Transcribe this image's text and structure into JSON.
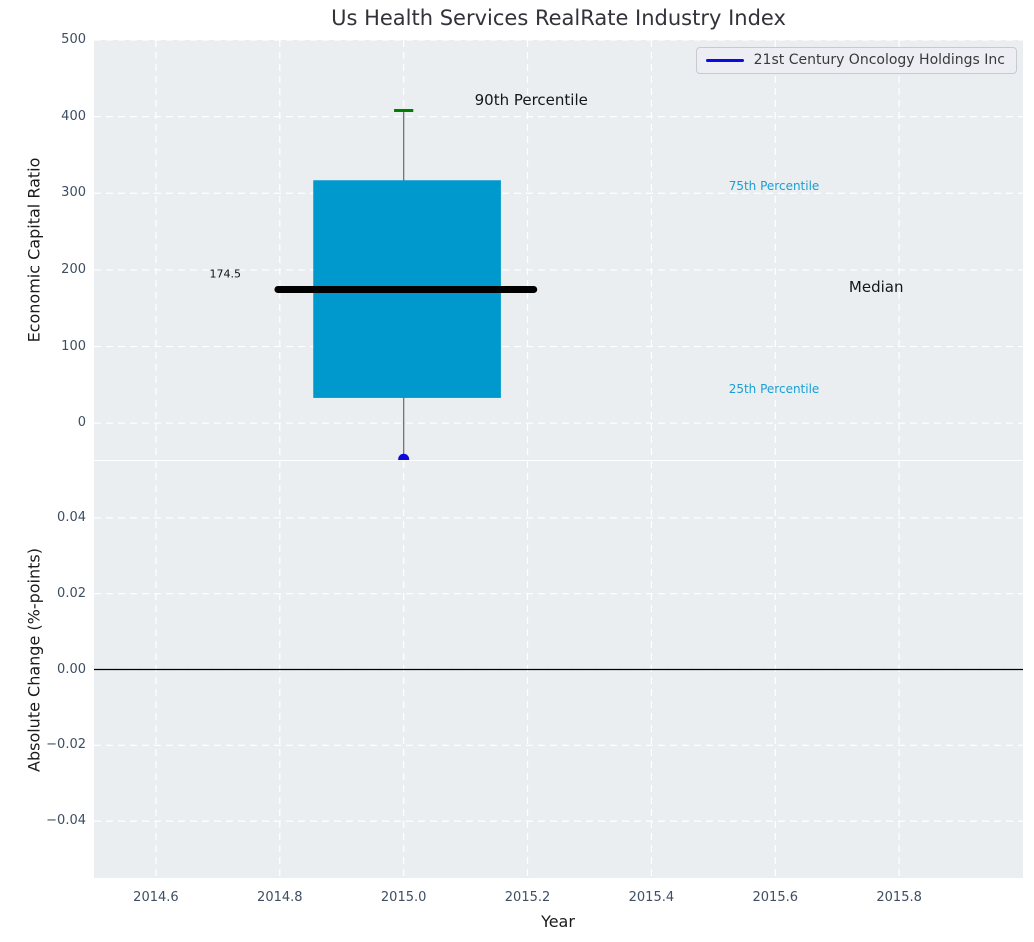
{
  "title": "Us Health Services RealRate Industry Index",
  "chart_data": [
    {
      "type": "boxplot",
      "title": "Us Health Services RealRate Industry Index",
      "ylabel": "Economic Capital Ratio",
      "xlim": [
        2014.5,
        2016.0
      ],
      "ylim": [
        -48,
        500
      ],
      "xticks": [
        2014.6,
        2014.8,
        2015.0,
        2015.2,
        2015.4,
        2015.6,
        2015.8
      ],
      "xtick_labels": [],
      "yticks": [
        500,
        400,
        300,
        200,
        100,
        0
      ],
      "ytick_labels": [
        "500",
        "400",
        "300",
        "200",
        "100",
        "0"
      ],
      "grid": "white-dashed",
      "legend": {
        "position": "upper-right",
        "label": "21st Century Oncology Holdings Inc",
        "line_color": "#0b0bdf"
      },
      "box": {
        "x_center": 2015.0,
        "box_left": 2014.854,
        "box_right": 2015.157,
        "median_left": 2014.797,
        "median_right": 2015.21,
        "q1": 33,
        "median": 174.5,
        "q3": 317,
        "whisker_top": 408,
        "company_point": -47,
        "cap_halfwidth": 0.0155
      },
      "style": {
        "box_color": "#0099cd",
        "cap_color": "#008000",
        "whisker_color": "#737373",
        "median_color": "#000000",
        "point_color": "#0b0bdf",
        "plot_bg": "#eaeef0",
        "grid_color": "#ffffff"
      },
      "annotations": [
        {
          "text": "90th Percentile",
          "x": 2015.206,
          "y": 422,
          "cls": "ann-black"
        },
        {
          "text": "75th Percentile",
          "x": 2015.598,
          "y": 310,
          "cls": "ann-cyan"
        },
        {
          "text": "Median",
          "x": 2015.763,
          "y": 178,
          "cls": "ann-black"
        },
        {
          "text": "25th Percentile",
          "x": 2015.598,
          "y": 45,
          "cls": "ann-cyan"
        },
        {
          "text": "174.5",
          "x": 2014.712,
          "y": 195,
          "cls": "ann-small"
        }
      ]
    },
    {
      "type": "line",
      "ylabel": "Absolute Change (%-points)",
      "xlabel": "Year",
      "xlim": [
        2014.5,
        2016.0
      ],
      "ylim": [
        -0.055,
        0.055
      ],
      "xticks": [
        2014.6,
        2014.8,
        2015.0,
        2015.2,
        2015.4,
        2015.6,
        2015.8
      ],
      "xtick_labels": [
        "2014.6",
        "2014.8",
        "2015.0",
        "2015.2",
        "2015.4",
        "2015.6",
        "2015.8"
      ],
      "yticks": [
        0.04,
        0.02,
        0.0,
        -0.02,
        -0.04
      ],
      "ytick_labels": [
        "0.04",
        "0.02",
        "0.00",
        "−0.02",
        "−0.04"
      ],
      "grid": "white-dashed",
      "zero_line": 0.0,
      "series": []
    }
  ]
}
